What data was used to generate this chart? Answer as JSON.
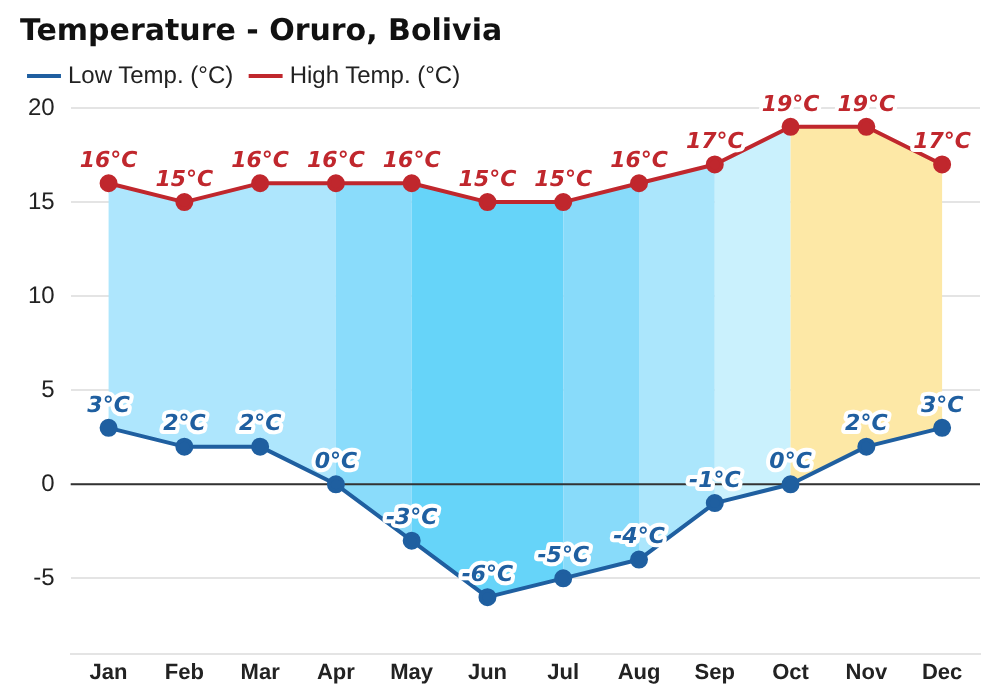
{
  "chart_data": {
    "type": "line",
    "title": "Temperature - Oruro, Bolivia",
    "categories": [
      "Jan",
      "Feb",
      "Mar",
      "Apr",
      "May",
      "Jun",
      "Jul",
      "Aug",
      "Sep",
      "Oct",
      "Nov",
      "Dec"
    ],
    "series": [
      {
        "name": "Low Temp. (°C)",
        "color": "#1f5fa0",
        "values": [
          3,
          2,
          2,
          0,
          -3,
          -6,
          -5,
          -4,
          -1,
          0,
          2,
          3
        ],
        "value_labels": [
          "3°C",
          "2°C",
          "2°C",
          "0°C",
          "-3°C",
          "-6°C",
          "-5°C",
          "-4°C",
          "-1°C",
          "0°C",
          "2°C",
          "3°C"
        ]
      },
      {
        "name": "High Temp. (°C)",
        "color": "#c0272d",
        "values": [
          16,
          15,
          16,
          16,
          16,
          15,
          15,
          16,
          17,
          19,
          19,
          17
        ],
        "value_labels": [
          "16°C",
          "15°C",
          "16°C",
          "16°C",
          "16°C",
          "15°C",
          "15°C",
          "16°C",
          "17°C",
          "19°C",
          "19°C",
          "17°C"
        ]
      }
    ],
    "bands": [
      {
        "axis": "x",
        "from": "Jan",
        "to": "Apr",
        "color": "#aee6fd"
      },
      {
        "axis": "x",
        "from": "Apr",
        "to": "May",
        "color": "#8adcfb"
      },
      {
        "axis": "x",
        "from": "May",
        "to": "Jul",
        "color": "#66d4f9"
      },
      {
        "axis": "x",
        "from": "Jul",
        "to": "Aug",
        "color": "#88dbfa"
      },
      {
        "axis": "x",
        "from": "Aug",
        "to": "Sep",
        "color": "#abe6fc"
      },
      {
        "axis": "x",
        "from": "Sep",
        "to": "Oct",
        "color": "#caf1fd"
      },
      {
        "axis": "x",
        "from": "Oct",
        "to": "Dec",
        "color": "#fde8a6"
      }
    ],
    "ref_lines": [
      {
        "axis": "y",
        "value": 0,
        "color": "#333333"
      }
    ],
    "ylim": [
      -9,
      20
    ],
    "yticks": [
      -5,
      0,
      5,
      10,
      15,
      20
    ],
    "grid": "y",
    "legend": "top left",
    "marker": "circle",
    "line_style": "solid"
  }
}
